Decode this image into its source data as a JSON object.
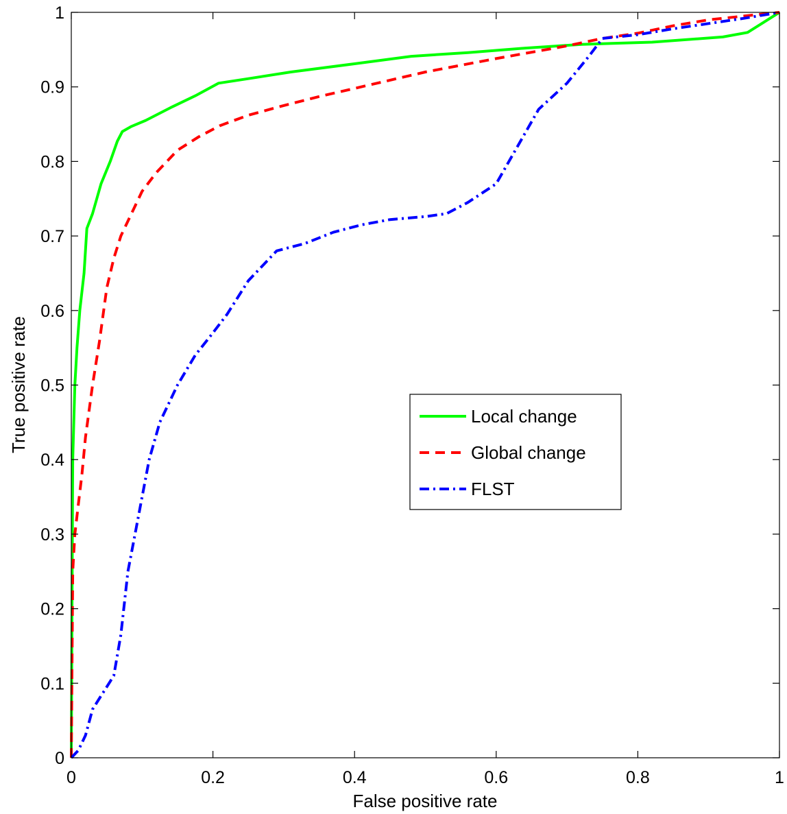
{
  "chart_data": {
    "type": "line",
    "title": "",
    "xlabel": "False positive rate",
    "ylabel": "True positive rate",
    "xlim": [
      0,
      1
    ],
    "ylim": [
      0,
      1
    ],
    "xticks": [
      "0",
      "0.2",
      "0.4",
      "0.6",
      "0.8",
      "1"
    ],
    "yticks": [
      "0",
      "0.1",
      "0.2",
      "0.3",
      "0.4",
      "0.5",
      "0.6",
      "0.7",
      "0.8",
      "0.9",
      "1"
    ],
    "grid": false,
    "legend_position": "center-right",
    "series": [
      {
        "name": "Local change",
        "color": "#00ff00",
        "style": "solid",
        "x": [
          0,
          0.002,
          0.005,
          0.008,
          0.012,
          0.018,
          0.022,
          0.03,
          0.042,
          0.055,
          0.065,
          0.072,
          0.085,
          0.105,
          0.14,
          0.175,
          0.208,
          0.25,
          0.31,
          0.4,
          0.48,
          0.56,
          0.64,
          0.72,
          0.82,
          0.92,
          0.955,
          0.975,
          1
        ],
        "y": [
          0,
          0.4,
          0.5,
          0.55,
          0.6,
          0.65,
          0.71,
          0.73,
          0.77,
          0.8,
          0.827,
          0.84,
          0.847,
          0.855,
          0.872,
          0.888,
          0.905,
          0.911,
          0.92,
          0.931,
          0.941,
          0.946,
          0.952,
          0.957,
          0.96,
          0.967,
          0.973,
          0.985,
          1
        ]
      },
      {
        "name": "Global change",
        "color": "#ff0000",
        "style": "dashed",
        "x": [
          0,
          0.002,
          0.005,
          0.01,
          0.015,
          0.02,
          0.03,
          0.04,
          0.05,
          0.06,
          0.07,
          0.085,
          0.1,
          0.12,
          0.15,
          0.18,
          0.21,
          0.25,
          0.3,
          0.35,
          0.4,
          0.5,
          0.6,
          0.7,
          0.75,
          0.8,
          0.85,
          0.9,
          0.95,
          1
        ],
        "y": [
          0,
          0.25,
          0.3,
          0.34,
          0.38,
          0.43,
          0.5,
          0.56,
          0.63,
          0.67,
          0.7,
          0.73,
          0.76,
          0.785,
          0.815,
          0.833,
          0.848,
          0.862,
          0.875,
          0.887,
          0.898,
          0.92,
          0.938,
          0.955,
          0.965,
          0.972,
          0.982,
          0.99,
          0.995,
          1
        ]
      },
      {
        "name": "FLST",
        "color": "#0000ff",
        "style": "dashdot",
        "x": [
          0,
          0.01,
          0.02,
          0.03,
          0.04,
          0.05,
          0.06,
          0.07,
          0.08,
          0.09,
          0.1,
          0.11,
          0.125,
          0.15,
          0.175,
          0.2,
          0.22,
          0.25,
          0.27,
          0.29,
          0.33,
          0.37,
          0.41,
          0.45,
          0.5,
          0.53,
          0.56,
          0.6,
          0.63,
          0.66,
          0.7,
          0.73,
          0.75,
          0.8,
          0.85,
          0.9,
          0.95,
          1
        ],
        "y": [
          0,
          0.01,
          0.03,
          0.065,
          0.08,
          0.095,
          0.11,
          0.165,
          0.25,
          0.3,
          0.35,
          0.4,
          0.45,
          0.5,
          0.54,
          0.57,
          0.595,
          0.64,
          0.66,
          0.68,
          0.69,
          0.705,
          0.715,
          0.722,
          0.726,
          0.73,
          0.745,
          0.77,
          0.82,
          0.87,
          0.905,
          0.94,
          0.965,
          0.97,
          0.978,
          0.985,
          0.992,
          1
        ]
      }
    ]
  }
}
